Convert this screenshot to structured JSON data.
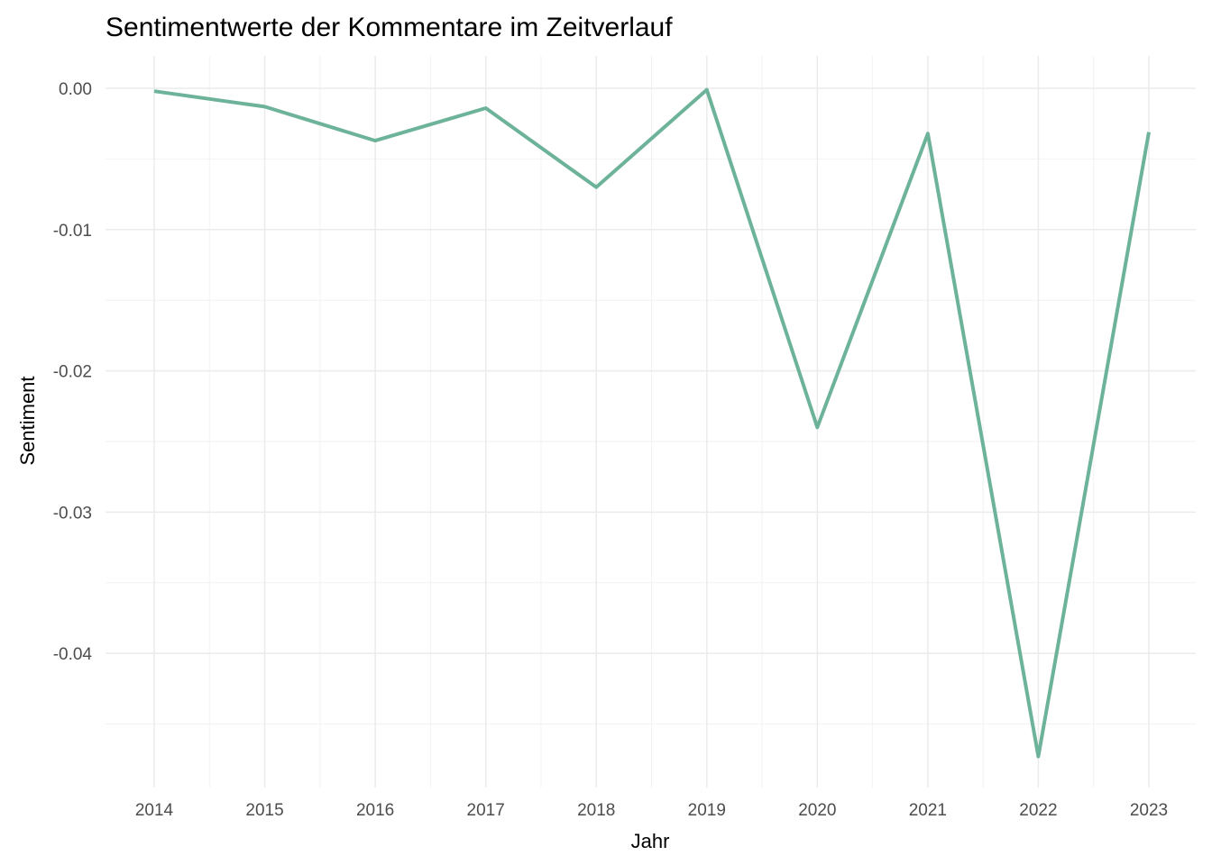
{
  "chart_data": {
    "type": "line",
    "title": "Sentimentwerte der Kommentare im Zeitverlauf",
    "xlabel": "Jahr",
    "ylabel": "Sentiment",
    "x": [
      "2014",
      "2015",
      "2016",
      "2017",
      "2018",
      "2019",
      "2020",
      "2021",
      "2022",
      "2023"
    ],
    "series": [
      {
        "values": [
          -0.0002,
          -0.0013,
          -0.0037,
          -0.0014,
          -0.007,
          -0.0001,
          -0.024,
          -0.0032,
          -0.0473,
          -0.0031
        ],
        "color": "#6db39a"
      }
    ],
    "ylim": [
      -0.0495,
      0.0023
    ],
    "yticks": [
      0.0,
      -0.01,
      -0.02,
      -0.03,
      -0.04
    ],
    "ytick_labels": [
      "0.00",
      "-0.01",
      "-0.02",
      "-0.03",
      "-0.04"
    ],
    "grid": true,
    "legend": "none"
  }
}
